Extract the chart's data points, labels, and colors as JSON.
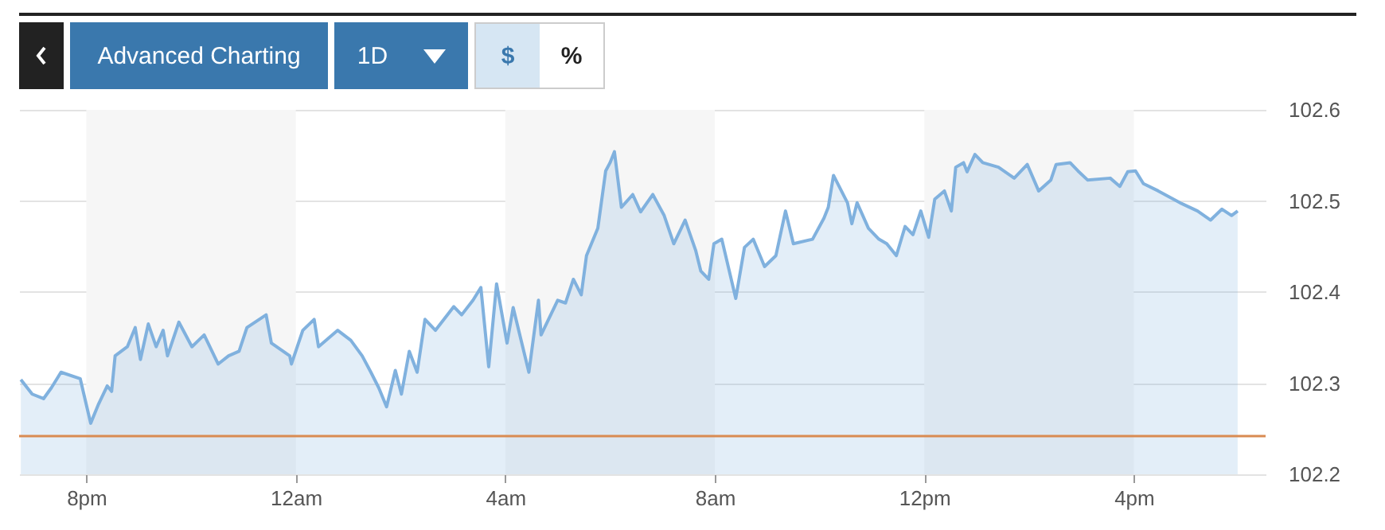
{
  "chart_data": {
    "type": "area",
    "annotations": [
      "Advanced Charting",
      "1D",
      "$",
      "%"
    ],
    "x": [
      "--01-01T18:45",
      "--01-01T18:58",
      "--01-01T19:11",
      "--01-01T19:20",
      "--01-01T19:31",
      "--01-01T19:53",
      "--01-01T20:05",
      "--01-01T20:14",
      "--01-01T20:24",
      "--01-01T20:29",
      "--01-01T20:33",
      "--01-01T20:47",
      "--01-01T20:56",
      "--01-01T21:02",
      "--01-01T21:11",
      "--01-01T21:20",
      "--01-01T21:28",
      "--01-01T21:33",
      "--01-01T21:46",
      "--01-01T22:01",
      "--01-01T22:15",
      "--01-01T22:31",
      "--01-01T22:43",
      "--01-01T22:55",
      "--01-01T23:04",
      "--01-01T23:26",
      "--01-01T23:32",
      "--01-01T23:53",
      "--01-01T23:55",
      "--01-02T00:08",
      "--01-02T00:21",
      "--01-02T00:26",
      "--01-02T00:48",
      "--01-02T01:03",
      "--01-02T01:16",
      "--01-02T01:26",
      "--01-02T01:35",
      "--01-02T01:44",
      "--01-02T01:54",
      "--01-02T02:01",
      "--01-02T02:10",
      "--01-02T02:19",
      "--01-02T02:28",
      "--01-02T02:40",
      "--01-02T03:01",
      "--01-02T03:10",
      "--01-02T03:23",
      "--01-02T03:32",
      "--01-02T03:41",
      "--01-02T03:50",
      "--01-02T04:02",
      "--01-02T04:09",
      "--01-02T04:27",
      "--01-02T04:38",
      "--01-02T04:41",
      "--01-02T05:00",
      "--01-02T05:09",
      "--01-02T05:18",
      "--01-02T05:27",
      "--01-02T05:33",
      "--01-02T05:46",
      "--01-02T05:55",
      "--01-02T06:00",
      "--01-02T06:05",
      "--01-02T06:13",
      "--01-02T06:26",
      "--01-02T06:35",
      "--01-02T06:49",
      "--01-02T07:02",
      "--01-02T07:13",
      "--01-02T07:26",
      "--01-02T07:38",
      "--01-02T07:44",
      "--01-02T07:53",
      "--01-02T07:59",
      "--01-02T08:08",
      "--01-02T08:24",
      "--01-02T08:34",
      "--01-02T08:44",
      "--01-02T08:57",
      "--01-02T09:10",
      "--01-02T09:21",
      "--01-02T09:30",
      "--01-02T09:52",
      "--01-02T10:05",
      "--01-02T10:10",
      "--01-02T10:16",
      "--01-02T10:32",
      "--01-02T10:37",
      "--01-02T10:43",
      "--01-02T10:56",
      "--01-02T11:08",
      "--01-02T11:17",
      "--01-02T11:28",
      "--01-02T11:38",
      "--01-02T11:47",
      "--01-02T11:56",
      "--01-02T12:05",
      "--01-02T12:12",
      "--01-02T12:23",
      "--01-02T12:31",
      "--01-02T12:36",
      "--01-02T12:45",
      "--01-02T12:49",
      "--01-02T12:58",
      "--01-02T13:07",
      "--01-02T13:25",
      "--01-02T13:43",
      "--01-02T13:58",
      "--01-02T14:11",
      "--01-02T14:25",
      "--01-02T14:31",
      "--01-02T14:47",
      "--01-02T14:56",
      "--01-02T15:07",
      "--01-02T15:33",
      "--01-02T15:44",
      "--01-02T15:53",
      "--01-02T16:02",
      "--01-02T16:11",
      "--01-02T16:28",
      "--01-02T16:55",
      "--01-02T17:13",
      "--01-02T17:28",
      "--01-02T17:41",
      "--01-02T17:52",
      "--01-02T17:59"
    ],
    "series": [
      {
        "color": "#80b1de",
        "values": [
          102.304,
          102.288,
          102.283,
          102.295,
          102.312,
          102.305,
          102.256,
          102.277,
          102.297,
          102.291,
          102.33,
          102.34,
          102.361,
          102.326,
          102.365,
          102.34,
          102.358,
          102.33,
          102.367,
          102.34,
          102.353,
          102.321,
          102.33,
          102.335,
          102.361,
          102.375,
          102.344,
          102.33,
          102.321,
          102.358,
          102.37,
          102.34,
          102.358,
          102.347,
          102.33,
          102.312,
          102.295,
          102.274,
          102.314,
          102.288,
          102.335,
          102.312,
          102.37,
          102.358,
          102.384,
          102.375,
          102.391,
          102.405,
          102.318,
          102.409,
          102.344,
          102.383,
          102.312,
          102.391,
          102.353,
          102.391,
          102.388,
          102.414,
          102.397,
          102.44,
          102.47,
          102.533,
          102.542,
          102.554,
          102.493,
          102.507,
          102.488,
          102.507,
          102.484,
          102.453,
          102.479,
          102.446,
          102.423,
          102.414,
          102.453,
          102.458,
          102.393,
          102.449,
          102.458,
          102.428,
          102.44,
          102.489,
          102.453,
          102.458,
          102.481,
          102.493,
          102.528,
          102.498,
          102.475,
          102.498,
          102.47,
          102.458,
          102.453,
          102.44,
          102.472,
          102.463,
          102.489,
          102.46,
          102.502,
          102.511,
          102.489,
          102.537,
          102.542,
          102.532,
          102.551,
          102.542,
          102.537,
          102.525,
          102.54,
          102.511,
          102.523,
          102.54,
          102.542,
          102.533,
          102.523,
          102.525,
          102.516,
          102.532,
          102.533,
          102.519,
          102.511,
          102.497,
          102.489,
          102.479,
          102.491,
          102.484,
          102.489
        ]
      }
    ],
    "xlim": [
      "--01-01T18:43",
      "--01-02T18:31"
    ],
    "xticks": [
      {
        "value": "--01-01T20:00",
        "label": "8pm"
      },
      {
        "value": "--01-02T00:00",
        "label": "12am"
      },
      {
        "value": "--01-02T04:00",
        "label": "4am"
      },
      {
        "value": "--01-02T08:00",
        "label": "8am"
      },
      {
        "value": "--01-02T12:00",
        "label": "12pm"
      },
      {
        "value": "--01-02T16:00",
        "label": "4pm"
      }
    ],
    "ylim": [
      102.2,
      102.6
    ],
    "yticks": [
      102.2,
      102.3,
      102.4,
      102.5,
      102.6
    ],
    "grid": "y",
    "bands": [
      {
        "axis": "x",
        "from": "--01-01T20:00",
        "to": "--01-02T00:00",
        "color": "#f6f6f6"
      },
      {
        "axis": "x",
        "from": "--01-02T04:00",
        "to": "--01-02T08:00",
        "color": "#f6f6f6"
      },
      {
        "axis": "x",
        "from": "--01-02T12:00",
        "to": "--01-02T16:00",
        "color": "#f6f6f6"
      }
    ],
    "ref_lines": [
      {
        "axis": "y",
        "value": 102.242,
        "color": "#d98b52"
      }
    ]
  }
}
